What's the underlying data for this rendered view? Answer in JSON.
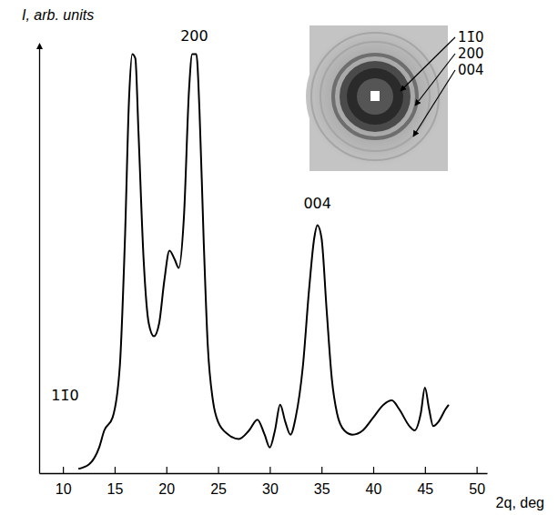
{
  "chart_data": {
    "type": "line",
    "x_label": "2q, deg",
    "y_label": "I, arb. units",
    "xlim": [
      7.7,
      51
    ],
    "xticks": [
      10,
      15,
      20,
      25,
      30,
      35,
      40,
      45,
      50
    ],
    "ylim": [
      0,
      100
    ],
    "tick_labels": "x",
    "color": "#000000",
    "x": [
      11.5,
      12.5,
      13.5,
      14.0,
      14.8,
      15.5,
      16.0,
      16.4,
      16.7,
      17.0,
      17.3,
      17.8,
      18.3,
      18.8,
      19.3,
      19.8,
      20.3,
      20.8,
      21.2,
      21.7,
      22.2,
      22.5,
      22.9,
      23.2,
      23.6,
      24.0,
      24.5,
      25.0,
      26.0,
      27.0,
      28.0,
      28.8,
      29.5,
      30.0,
      30.5,
      31.0,
      31.5,
      32.0,
      32.5,
      33.2,
      33.8,
      34.3,
      34.6,
      35.0,
      35.5,
      36.0,
      36.5,
      37.2,
      38.0,
      39.0,
      40.0,
      41.0,
      41.8,
      42.5,
      43.5,
      44.0,
      44.6,
      45.0,
      45.4,
      45.8,
      46.3,
      47.0,
      47.3
    ],
    "values": [
      1,
      2,
      6,
      10,
      13,
      25,
      55,
      88,
      98,
      97,
      80,
      50,
      35,
      32,
      35,
      45,
      52,
      50,
      48,
      60,
      90,
      98,
      98,
      85,
      55,
      30,
      17,
      12,
      9,
      8,
      10,
      12.5,
      9,
      6,
      10,
      16,
      12,
      9,
      13,
      25,
      43,
      55,
      58,
      55,
      38,
      22,
      14,
      10,
      9,
      10,
      13,
      16,
      17,
      15,
      11,
      10,
      14,
      20,
      15,
      11,
      12,
      15,
      16
    ],
    "annotations": [
      {
        "text": "11̄0",
        "x": 10.2,
        "y": 17
      },
      {
        "text": "200",
        "x": 22.7,
        "y": 101
      },
      {
        "text": "004",
        "x": 34.6,
        "y": 62
      }
    ],
    "inset": {
      "labels": [
        "11̄0",
        "200",
        "004"
      ]
    }
  }
}
